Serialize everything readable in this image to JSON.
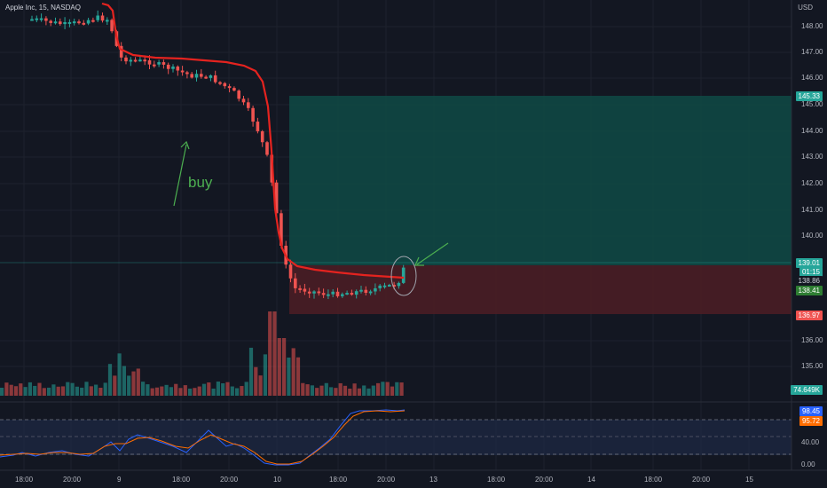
{
  "header": {
    "symbol_title": "Apple Inc, 15, NASDAQ",
    "currency": "USD"
  },
  "annotations": {
    "buy_label": "buy"
  },
  "price_axis": {
    "ticks": [
      "148.00",
      "147.00",
      "146.00",
      "145.00",
      "144.00",
      "143.00",
      "142.00",
      "141.00",
      "140.00",
      "136.00",
      "135.00"
    ],
    "target_tag": "145.33",
    "current_tag": "139.01",
    "countdown_tag": "01:15",
    "ma_tag": "138.86",
    "entry_tag": "138.41",
    "stop_tag": "136.97",
    "volume_tag": "74.649K"
  },
  "indicator_axis": {
    "ticks": [
      "40.00",
      "0.00"
    ],
    "k_tag": "98.45",
    "d_tag": "95.72"
  },
  "time_axis": {
    "labels": [
      "18:00",
      "20:00",
      "9",
      "18:00",
      "20:00",
      "10",
      "18:00",
      "20:00",
      "13",
      "18:00",
      "20:00",
      "14",
      "18:00",
      "20:00",
      "15"
    ]
  },
  "colors": {
    "background": "#131722",
    "up": "#26a69a",
    "down": "#ef5350",
    "ma_line": "#e5231f",
    "target_zone": "#0f4a45",
    "stop_zone": "#4d1d25",
    "k_line": "#2962ff",
    "d_line": "#ff6d00",
    "annotation": "#4caf50"
  }
}
